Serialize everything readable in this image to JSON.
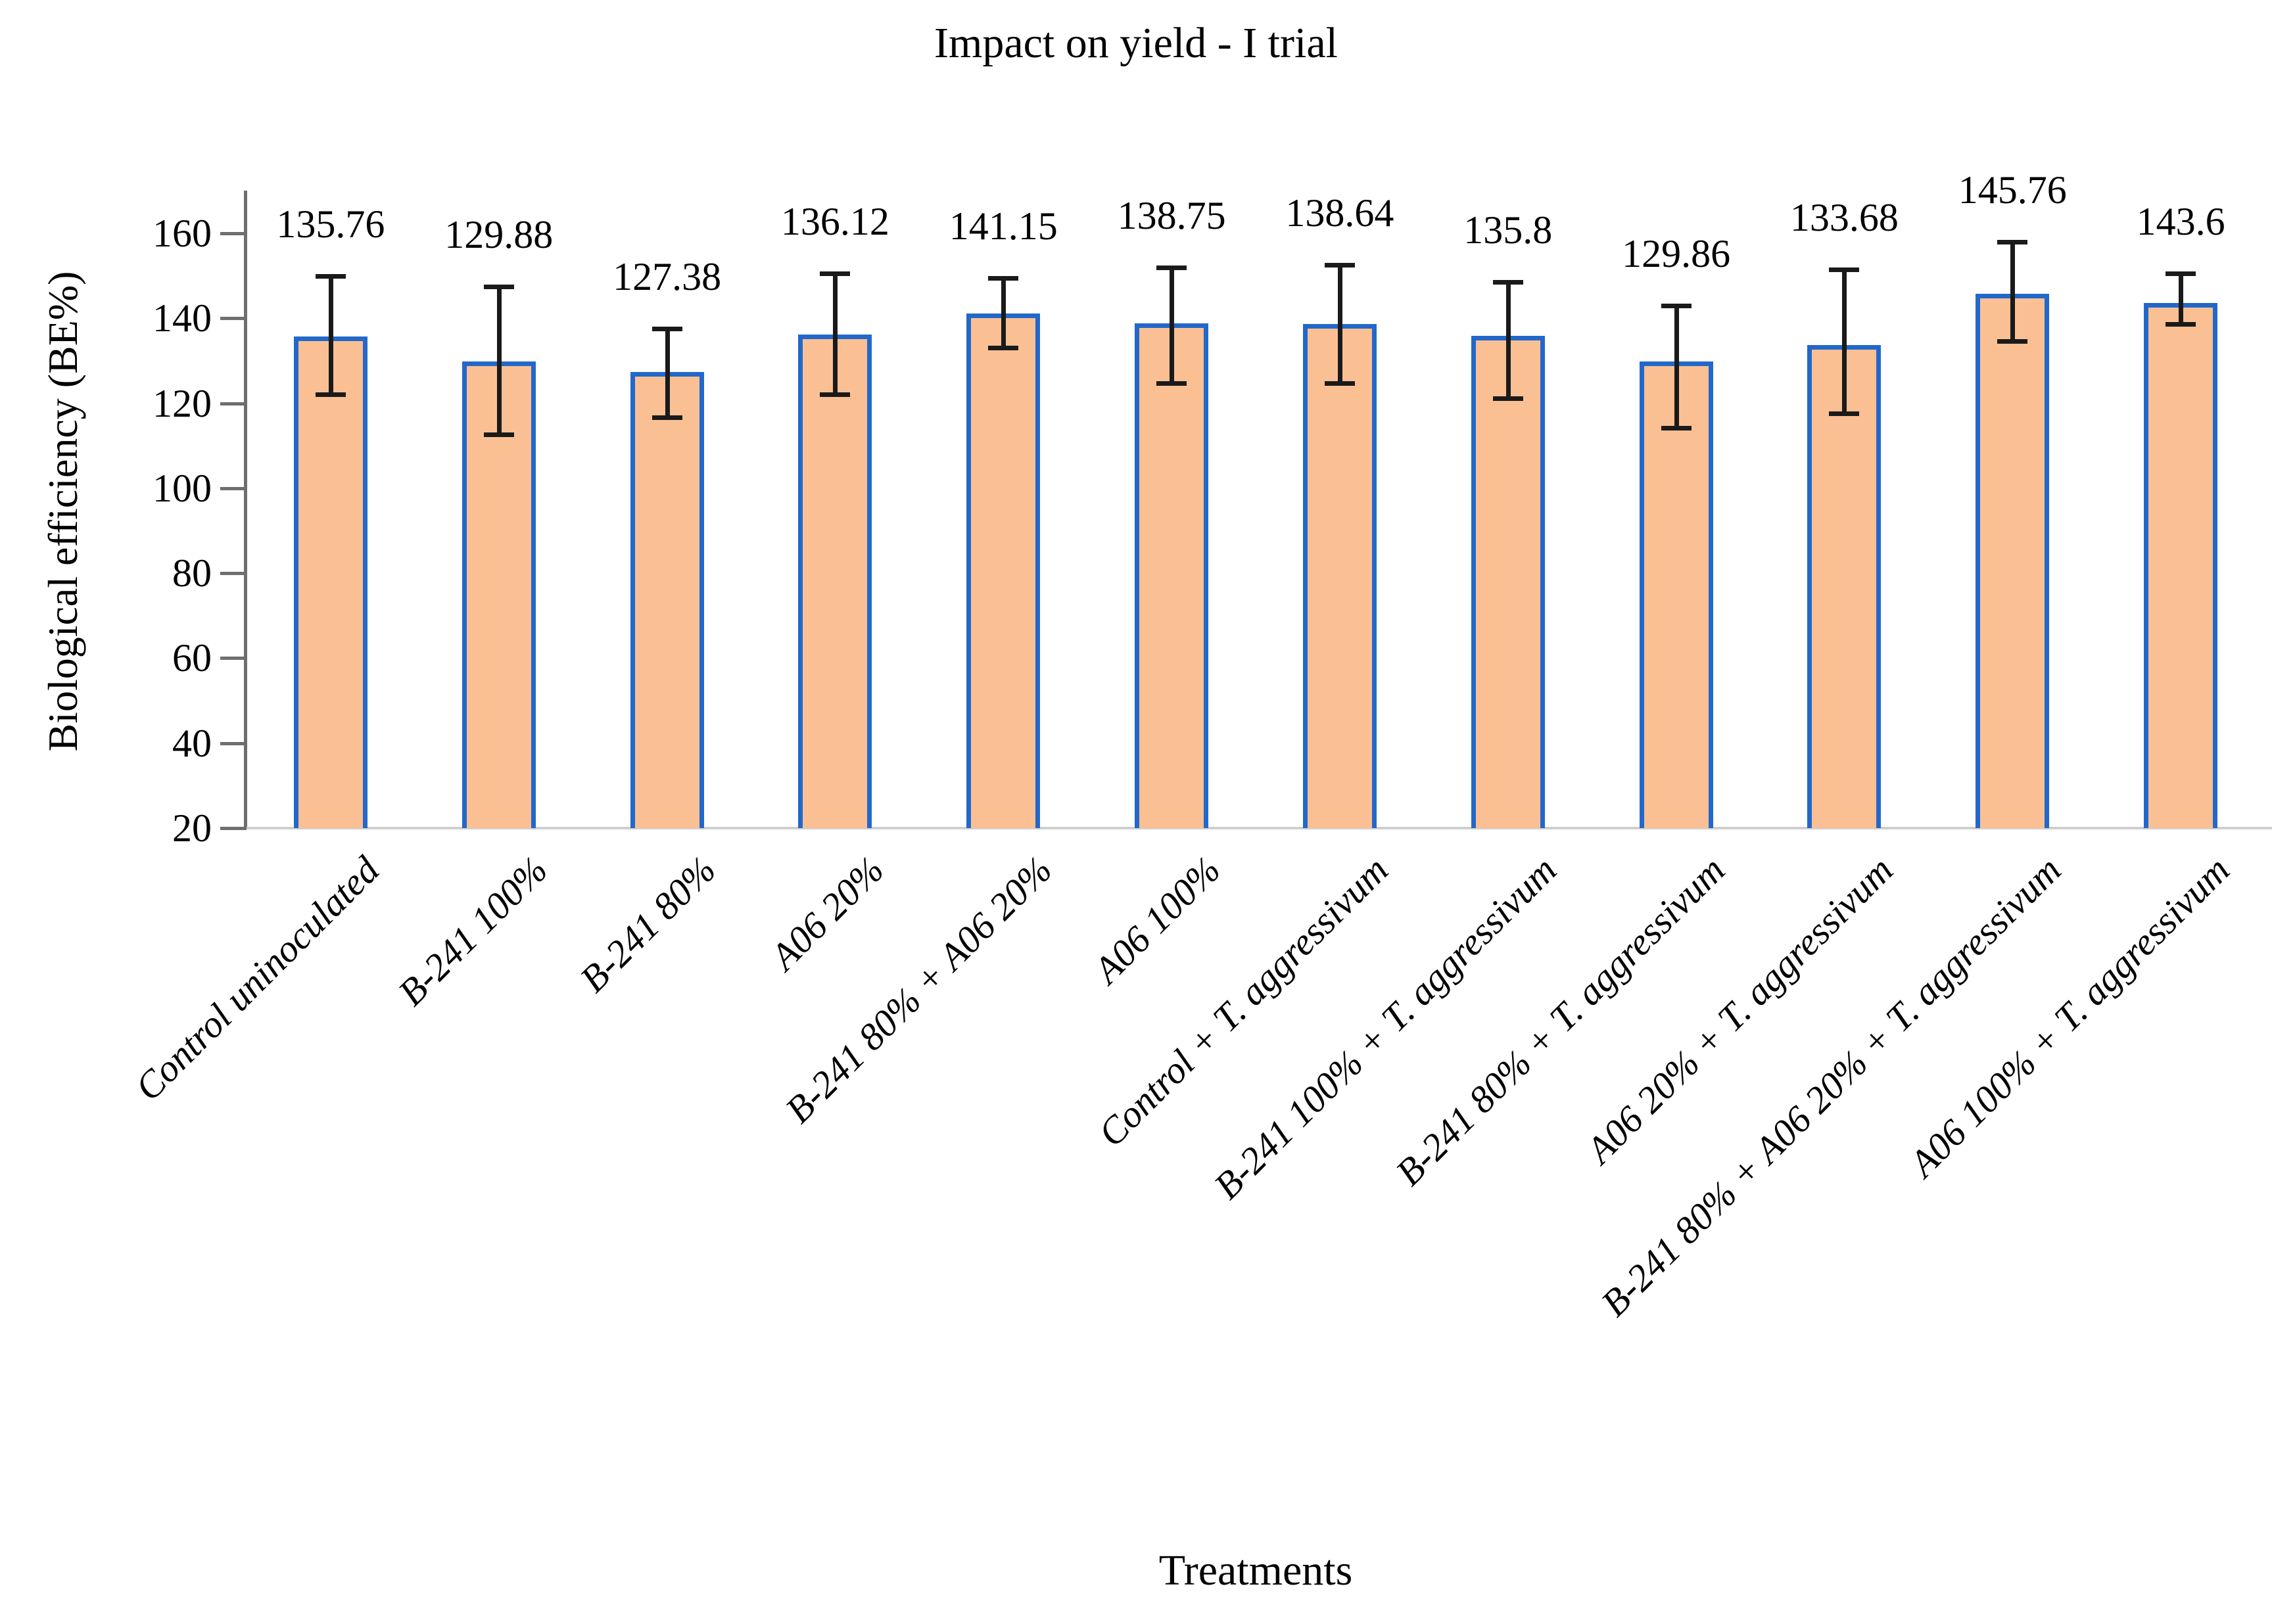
{
  "title": "Impact on yield - I trial",
  "colors": {
    "bar_fill": "#FAC094",
    "bar_border": "#2268CB",
    "error_bar": "#1a1a1a",
    "axis_line": "#6e6e6e",
    "baseline": "#cfcfcf",
    "text": "#000000"
  },
  "chart_data": {
    "type": "bar",
    "title": "Impact on yield - I trial",
    "xlabel": "Treatments",
    "ylabel": "Biological efficiency (BE%)",
    "ylim": [
      20,
      160
    ],
    "y_ticks": [
      20,
      40,
      60,
      80,
      100,
      120,
      140,
      160
    ],
    "grid": false,
    "legend_position": "none",
    "categories": [
      "Control uninoculated",
      "B-241 100%",
      "B-241 80%",
      "A06 20%",
      "B-241 80% + A06 20%",
      "A06 100%",
      "Control + T. aggressivum",
      "B-241 100% + T. aggressivum",
      "B-241 80% + T. aggressivum",
      "A06 20% + T. aggressivum",
      "B-241 80% + A06 20% + T. aggressivum",
      "A06 100% + T. aggressivum"
    ],
    "values": [
      135.76,
      129.88,
      127.38,
      136.12,
      141.15,
      138.75,
      138.64,
      135.8,
      129.86,
      133.68,
      145.76,
      143.6
    ],
    "error_bars": [
      {
        "low": 122.0,
        "high": 150.0
      },
      {
        "low": 112.5,
        "high": 147.5
      },
      {
        "low": 116.5,
        "high": 137.5
      },
      {
        "low": 122.0,
        "high": 150.5
      },
      {
        "low": 133.0,
        "high": 149.5
      },
      {
        "low": 124.5,
        "high": 152.0
      },
      {
        "low": 124.5,
        "high": 152.5
      },
      {
        "low": 121.0,
        "high": 148.5
      },
      {
        "low": 114.0,
        "high": 143.0
      },
      {
        "low": 117.5,
        "high": 151.5
      },
      {
        "low": 134.5,
        "high": 158.0
      },
      {
        "low": 138.5,
        "high": 150.5
      }
    ]
  }
}
